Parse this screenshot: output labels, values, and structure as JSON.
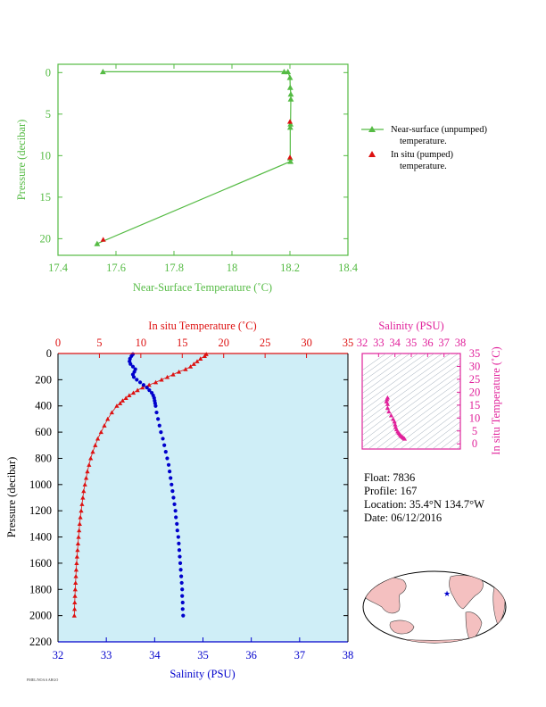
{
  "chart_data": [
    {
      "type": "line",
      "xlabel": "Near-Surface Temperature (˚C)",
      "ylabel": "Pressure (decibar)",
      "xlim": [
        17.4,
        18.4
      ],
      "ylim": [
        22,
        -1
      ],
      "xticks": [
        "17.4",
        "17.6",
        "17.8",
        "18",
        "18.2",
        "18.4"
      ],
      "yticks": [
        "0",
        "5",
        "10",
        "15",
        "20"
      ],
      "series": [
        {
          "name": "Near-surface (unpumped) temperature.",
          "color": "#55bb44",
          "marker": "triangle",
          "x": [
            17.555,
            18.18,
            18.193,
            18.2,
            18.201,
            18.203,
            18.203,
            18.202,
            18.201,
            18.201,
            18.202,
            17.535
          ],
          "y": [
            -0.1,
            -0.1,
            -0.1,
            0.6,
            1.8,
            2.6,
            3.2,
            6.2,
            6.6,
            10.3,
            10.7,
            20.6
          ]
        },
        {
          "name": "In situ (pumped) temperature.",
          "color": "#dd1111",
          "marker": "triangle",
          "x": [
            18.2,
            18.2,
            17.556
          ],
          "y": [
            5.9,
            10.2,
            20.1
          ]
        }
      ]
    },
    {
      "type": "scatter",
      "xlabel": "Salinity (PSU)",
      "ylabel": "Pressure (decibar)",
      "x2label": "In situ Temperature (˚C)",
      "xlim": [
        32,
        38
      ],
      "x2lim": [
        0,
        35
      ],
      "ylim": [
        2200,
        0
      ],
      "xticks": [
        "32",
        "33",
        "34",
        "35",
        "36",
        "37",
        "38"
      ],
      "x2ticks": [
        "0",
        "5",
        "10",
        "15",
        "20",
        "25",
        "30",
        "35"
      ],
      "yticks": [
        "0",
        "200",
        "400",
        "600",
        "800",
        "1000",
        "1200",
        "1400",
        "1600",
        "1800",
        "2000",
        "2200"
      ],
      "pressure": [
        5,
        20,
        40,
        60,
        80,
        100,
        120,
        140,
        160,
        180,
        200,
        220,
        240,
        260,
        280,
        300,
        320,
        340,
        360,
        380,
        400,
        450,
        500,
        550,
        600,
        650,
        700,
        750,
        800,
        850,
        900,
        950,
        1000,
        1050,
        1100,
        1150,
        1200,
        1250,
        1300,
        1350,
        1400,
        1450,
        1500,
        1550,
        1600,
        1650,
        1700,
        1750,
        1800,
        1850,
        1900,
        1950,
        2000
      ],
      "salinity": [
        33.55,
        33.52,
        33.49,
        33.48,
        33.5,
        33.55,
        33.6,
        33.58,
        33.55,
        33.57,
        33.63,
        33.7,
        33.77,
        33.84,
        33.89,
        33.94,
        33.97,
        33.99,
        34.0,
        34.01,
        34.02,
        34.04,
        34.07,
        34.1,
        34.13,
        34.17,
        34.2,
        34.23,
        34.26,
        34.29,
        34.31,
        34.33,
        34.35,
        34.37,
        34.39,
        34.41,
        34.43,
        34.44,
        34.46,
        34.47,
        34.49,
        34.5,
        34.51,
        34.52,
        34.53,
        34.54,
        34.55,
        34.56,
        34.57,
        34.57,
        34.58,
        34.58,
        34.59
      ],
      "temperature": [
        17.9,
        17.7,
        17.2,
        16.8,
        16.4,
        16.0,
        15.4,
        14.6,
        13.9,
        13.2,
        12.5,
        11.8,
        11.0,
        10.2,
        9.6,
        9.1,
        8.6,
        8.2,
        7.8,
        7.5,
        7.1,
        6.5,
        6.0,
        5.6,
        5.2,
        4.8,
        4.5,
        4.2,
        3.95,
        3.75,
        3.55,
        3.4,
        3.25,
        3.1,
        3.0,
        2.9,
        2.8,
        2.7,
        2.62,
        2.55,
        2.48,
        2.42,
        2.36,
        2.3,
        2.25,
        2.2,
        2.16,
        2.12,
        2.08,
        2.05,
        2.02,
        2.0,
        1.97
      ],
      "salinity_color": "#0000cc",
      "temperature_color": "#dd1111",
      "background": "#cfeef7"
    },
    {
      "type": "scatter",
      "xlabel": "Salinity (PSU)",
      "ylabel": "In situ Temperature (˚C)",
      "xlim": [
        32,
        38
      ],
      "ylim": [
        -2,
        35
      ],
      "xticks": [
        "32",
        "33",
        "34",
        "35",
        "36",
        "37",
        "38"
      ],
      "yticks": [
        "0",
        "5",
        "10",
        "15",
        "20",
        "25",
        "30",
        "35"
      ],
      "color": "#e0209a",
      "points": [
        [
          33.55,
          17.9
        ],
        [
          33.52,
          17.2
        ],
        [
          33.48,
          16.4
        ],
        [
          33.55,
          15.4
        ],
        [
          33.55,
          13.9
        ],
        [
          33.63,
          12.5
        ],
        [
          33.77,
          11.0
        ],
        [
          33.89,
          9.6
        ],
        [
          33.97,
          8.6
        ],
        [
          34.01,
          7.5
        ],
        [
          34.04,
          6.5
        ],
        [
          34.1,
          5.6
        ],
        [
          34.17,
          4.8
        ],
        [
          34.23,
          4.2
        ],
        [
          34.29,
          3.75
        ],
        [
          34.35,
          3.25
        ],
        [
          34.41,
          2.9
        ],
        [
          34.47,
          2.55
        ],
        [
          34.53,
          2.25
        ],
        [
          34.59,
          1.97
        ]
      ]
    }
  ],
  "legend": {
    "items": [
      {
        "line1": "Near-surface (unpumped)",
        "line2": "temperature."
      },
      {
        "line1": "In situ (pumped)",
        "line2": "temperature."
      }
    ]
  },
  "info": {
    "float": "Float:  7836",
    "profile": "Profile:  167",
    "location": "Location:  35.4°N  134.7°W",
    "date": "Date:  06/12/2016"
  },
  "credit": "PMEL/NOAA  ARGO"
}
